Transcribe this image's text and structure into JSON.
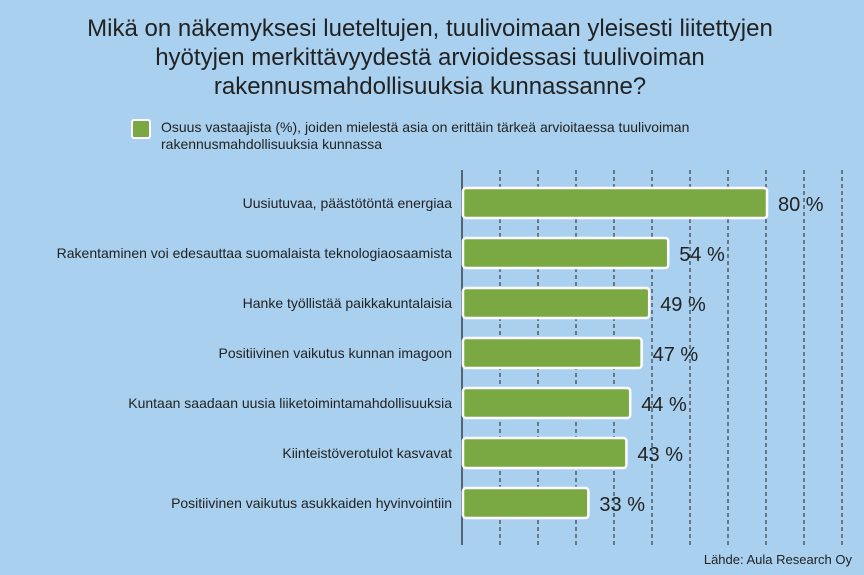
{
  "title_lines": [
    "Mikä on näkemyksesi lueteltujen, tuulivoimaan yleisesti liitettyjen",
    "hyötyjen merkittävyydestä arvioidessasi tuulivoiman",
    "rakennusmahdollisuuksia kunnassanne?"
  ],
  "legend_label": "Osuus vastaajista (%), joiden mielestä asia on erittäin tärkeä arvioitaessa tuulivoiman rakennusmahdollisuuksia kunnassa",
  "source": "Lähde: Aula Research Oy",
  "colors": {
    "bar": "#7aa842",
    "bar_border": "#ffffff",
    "background": "#a9d1ef"
  },
  "chart_data": {
    "type": "bar",
    "orientation": "horizontal",
    "categories": [
      "Uusiutuvaa, päästötöntä energiaa",
      "Rakentaminen voi edesauttaa suomalaista teknologiaosaamista",
      "Hanke työllistää paikkakuntalaisia",
      "Positiivinen vaikutus kunnan imagoon",
      "Kuntaan saadaan uusia liiketoimintamahdollisuuksia",
      "Kiinteistöverotulot kasvavat",
      "Positiivinen vaikutus asukkaiden hyvinvointiin"
    ],
    "values": [
      80,
      54,
      49,
      47,
      44,
      43,
      33
    ],
    "value_labels": [
      "80 %",
      "54 %",
      "49 %",
      "47 %",
      "44 %",
      "43 %",
      "33 %"
    ],
    "series": [
      {
        "name": "Osuus vastaajista (%), joiden mielestä asia on erittäin tärkeä arvioitaessa tuulivoiman rakennusmahdollisuuksia kunnassa",
        "values": [
          80,
          54,
          49,
          47,
          44,
          43,
          33
        ]
      }
    ],
    "xlim": [
      0,
      100
    ],
    "grid": true
  }
}
